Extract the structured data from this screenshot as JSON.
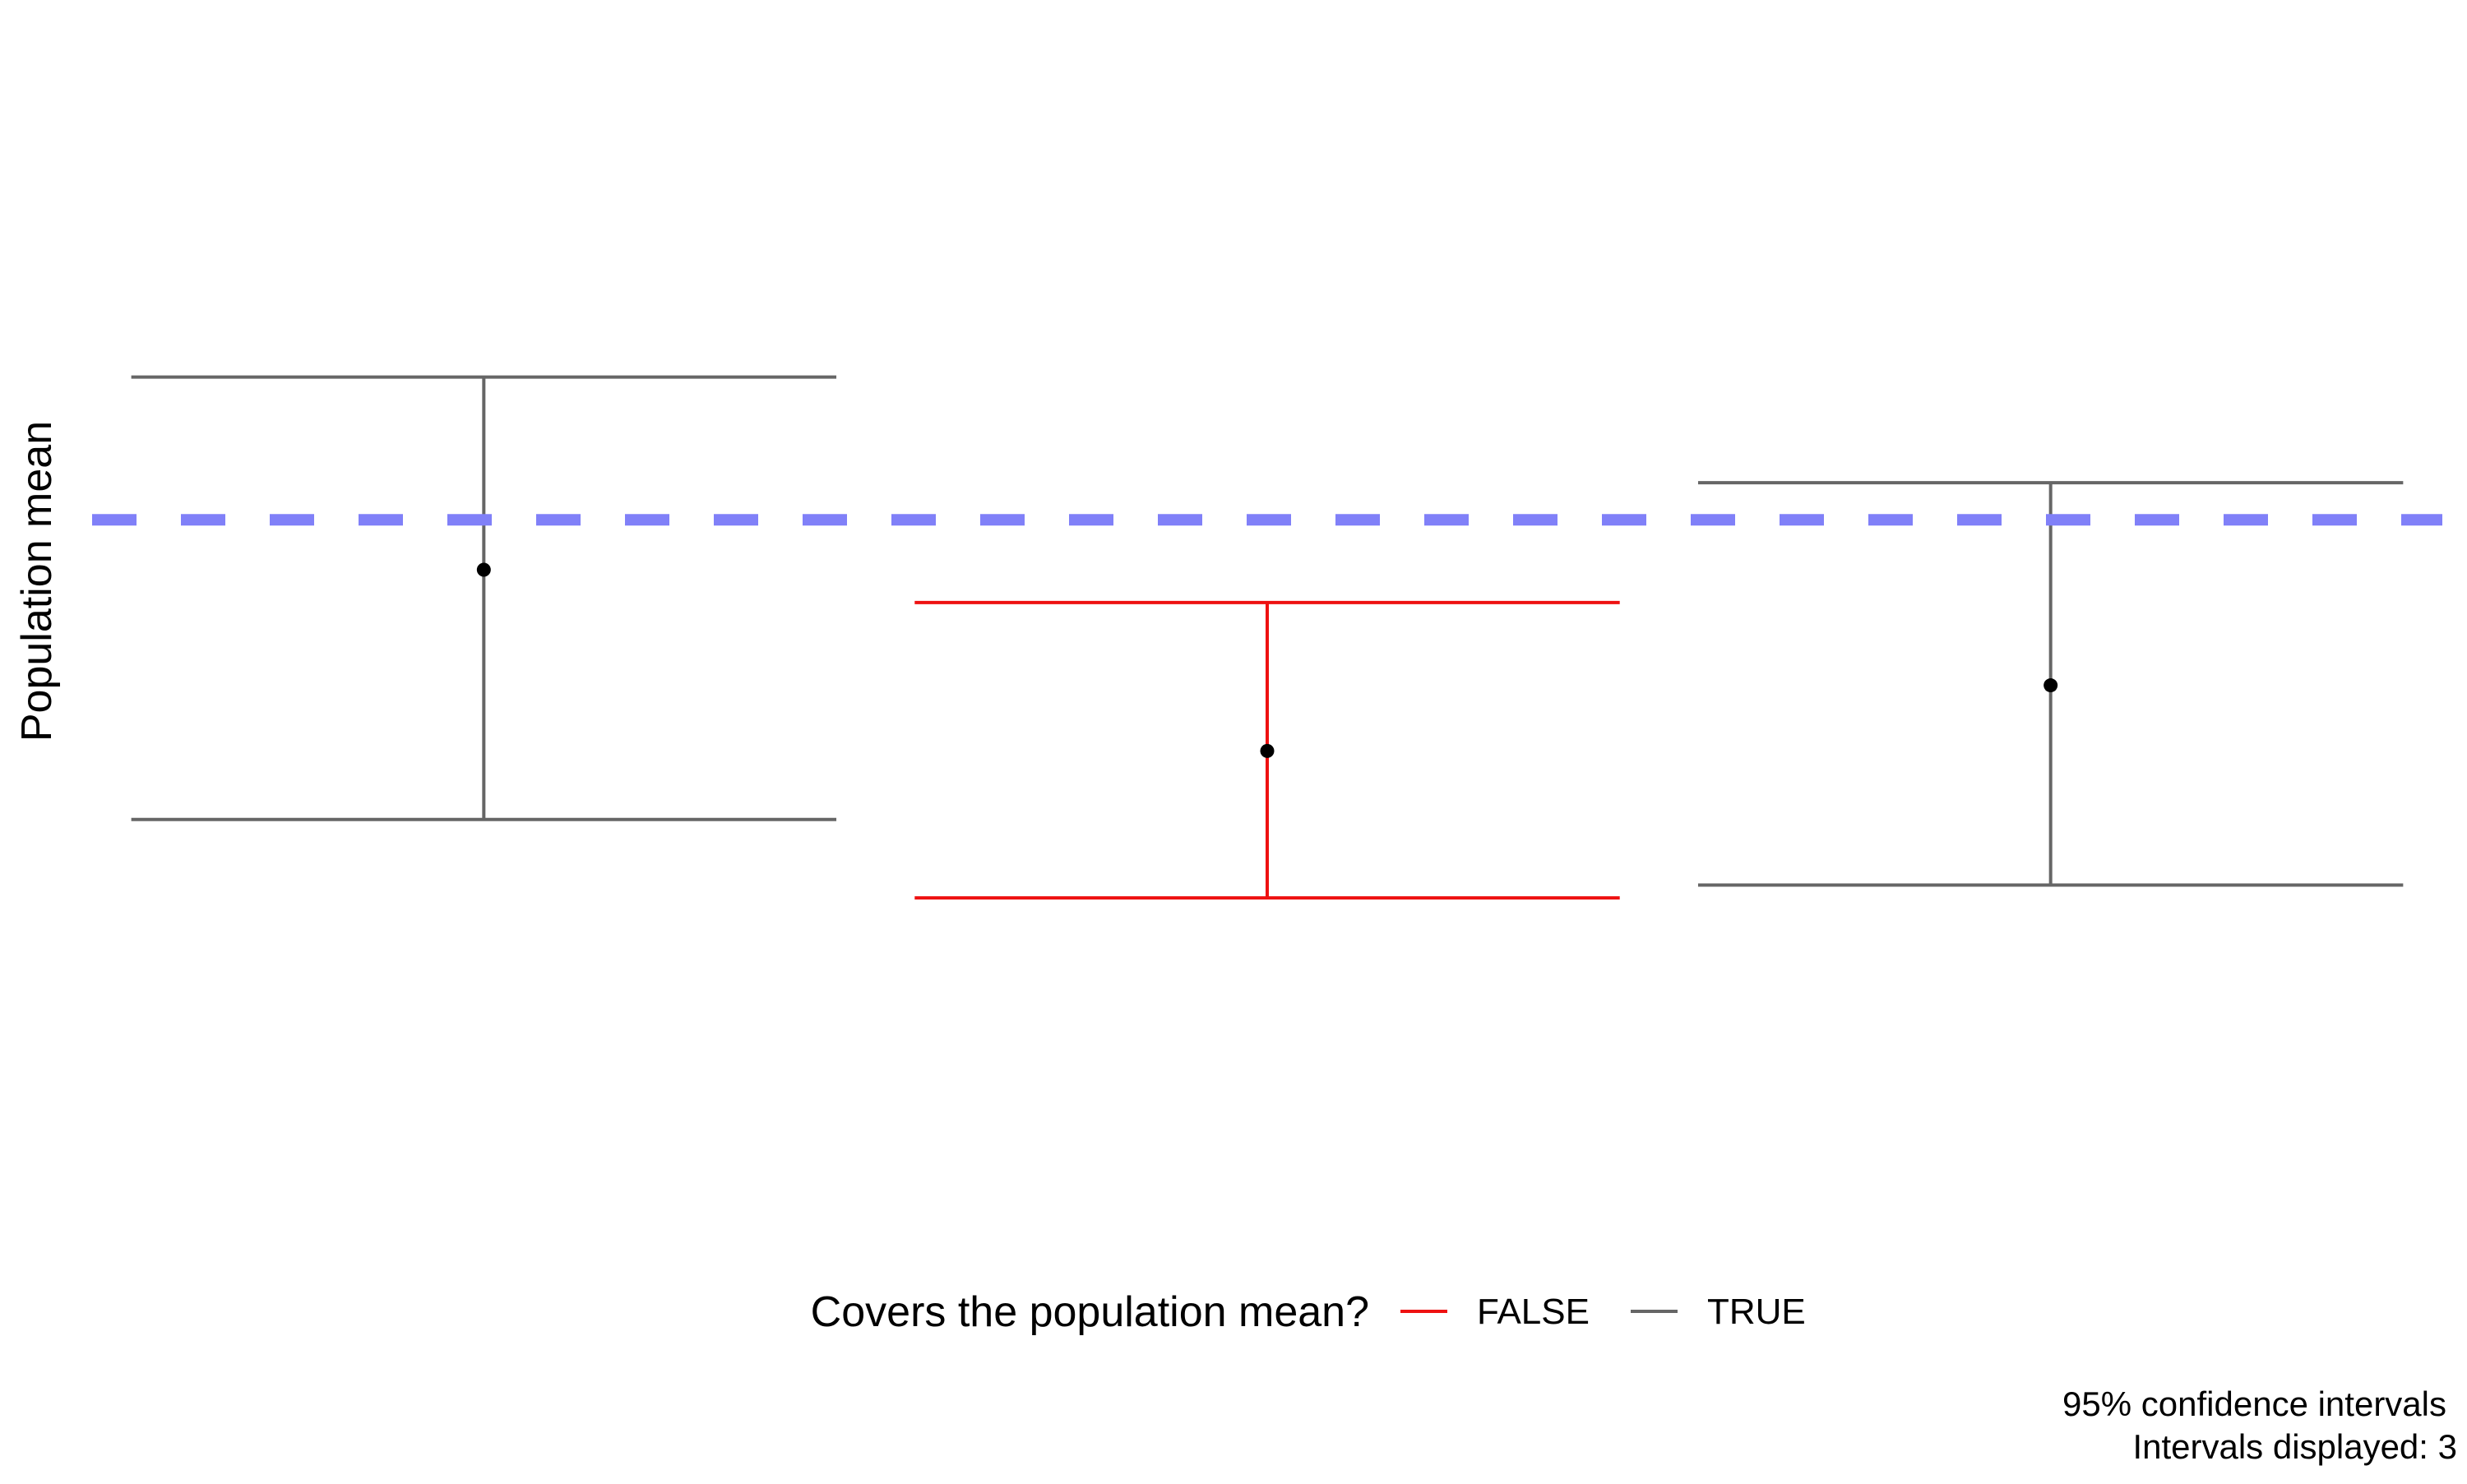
{
  "chart_data": {
    "type": "errorbar",
    "ylabel": "Population mean",
    "xlabel": "",
    "grid": false,
    "legend_position": "bottom",
    "reference_line": {
      "value": 0.0,
      "color": "#8080f8",
      "style": "dashed"
    },
    "legend": {
      "title": "Covers the population mean?",
      "entries": [
        {
          "label": "FALSE",
          "color": "#ee1111"
        },
        {
          "label": "TRUE",
          "color": "#666666"
        }
      ]
    },
    "intervals": [
      {
        "index": 1,
        "estimate": -0.35,
        "lower": -2.1,
        "upper": 1.0,
        "covers": "TRUE"
      },
      {
        "index": 2,
        "estimate": -1.62,
        "lower": -2.65,
        "upper": -0.58,
        "covers": "FALSE"
      },
      {
        "index": 3,
        "estimate": -1.16,
        "lower": -2.56,
        "upper": 0.26,
        "covers": "TRUE"
      }
    ],
    "ylim": [
      -5.0,
      3.47
    ],
    "xlim": [
      0.5,
      3.5
    ],
    "caption": [
      "95% confidence intervals",
      "Intervals displayed: 3"
    ]
  }
}
